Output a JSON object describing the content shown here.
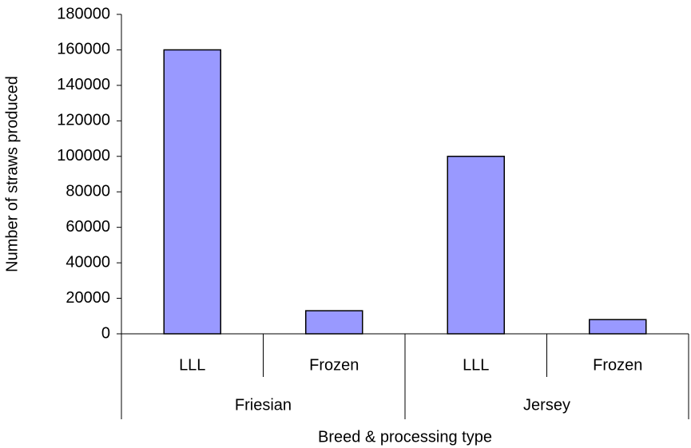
{
  "chart_data": {
    "type": "bar",
    "x_label": "Breed & processing type",
    "y_label": "Number of straws produced",
    "categories": [
      "LLL",
      "Frozen",
      "LLL",
      "Frozen"
    ],
    "group_labels": [
      "Friesian",
      "Jersey"
    ],
    "values": [
      160000,
      13000,
      100000,
      8000
    ],
    "color": "#9999ff",
    "ylim": [
      0,
      180000
    ],
    "yticks": [
      0,
      20000,
      40000,
      60000,
      80000,
      100000,
      120000,
      140000,
      160000,
      180000
    ],
    "grid": false
  }
}
